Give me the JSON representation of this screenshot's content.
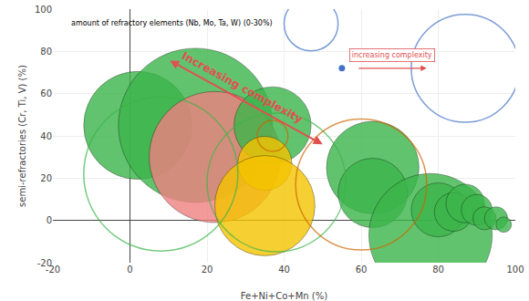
{
  "chart_data": {
    "type": "bubble",
    "xlabel": "Fe+Ni+Co+Mn (%)",
    "ylabel": "semi-refractories (Cr, Ti, V) (%)",
    "xlim": [
      -20,
      100
    ],
    "ylim": [
      -20,
      100
    ],
    "xticks": [
      -20,
      0,
      20,
      40,
      60,
      80,
      100
    ],
    "yticks": [
      -20,
      0,
      20,
      40,
      60,
      80,
      100
    ],
    "grid": true,
    "series": [
      {
        "marker": "circle",
        "x": [
          2,
          17,
          22,
          37,
          35,
          35,
          63,
          63,
          78,
          80,
          84,
          87,
          90,
          92,
          95,
          97
        ],
        "values": [
          45,
          45,
          30,
          45,
          27,
          7,
          25,
          13,
          -7,
          5,
          4,
          8,
          5,
          1,
          1,
          -2
        ],
        "sizes": [
          14,
          20,
          17,
          10,
          7,
          13,
          12,
          9,
          16,
          7,
          5,
          5,
          4,
          3,
          3,
          2
        ],
        "colors": [
          "#3cb54a",
          "#3cb54a",
          "#f08080",
          "#3cb54a",
          "#f5c400",
          "#f5c400",
          "#3cb54a",
          "#3cb54a",
          "#3cb54a",
          "#3cb54a",
          "#3cb54a",
          "#3cb54a",
          "#3cb54a",
          "#3cb54a",
          "#3cb54a",
          "#3cb54a"
        ]
      },
      {
        "marker": "circle-open",
        "x": [
          8,
          37,
          38,
          60,
          87,
          47
        ],
        "values": [
          22,
          40,
          18,
          17,
          72,
          93
        ],
        "sizes": [
          20,
          4,
          18,
          17,
          14,
          7
        ],
        "colors": [
          "#3cb54a",
          "#cc6600",
          "#3cb54a",
          "#cc6600",
          "#4472c4",
          "#4472c4"
        ]
      },
      {
        "type": "scatter",
        "marker": "circle",
        "color": "#4472c4",
        "x": [
          55
        ],
        "values": [
          72
        ]
      }
    ],
    "annotations": [
      {
        "text": "amount of refractory elements (Nb, Mo, Ta, W) (0-30%)"
      },
      {
        "text": "increasing complexity",
        "x": 68,
        "y": 74,
        "color": "#e05050",
        "arrow": {
          "from": [
            59,
            72
          ],
          "to": [
            77,
            72
          ]
        }
      },
      {
        "text": "Increasing complexity",
        "x": 28,
        "y": 59,
        "color": "#e05050",
        "arrow": {
          "from": [
            10,
            76
          ],
          "to": [
            50,
            36
          ],
          "double": true
        }
      }
    ]
  }
}
